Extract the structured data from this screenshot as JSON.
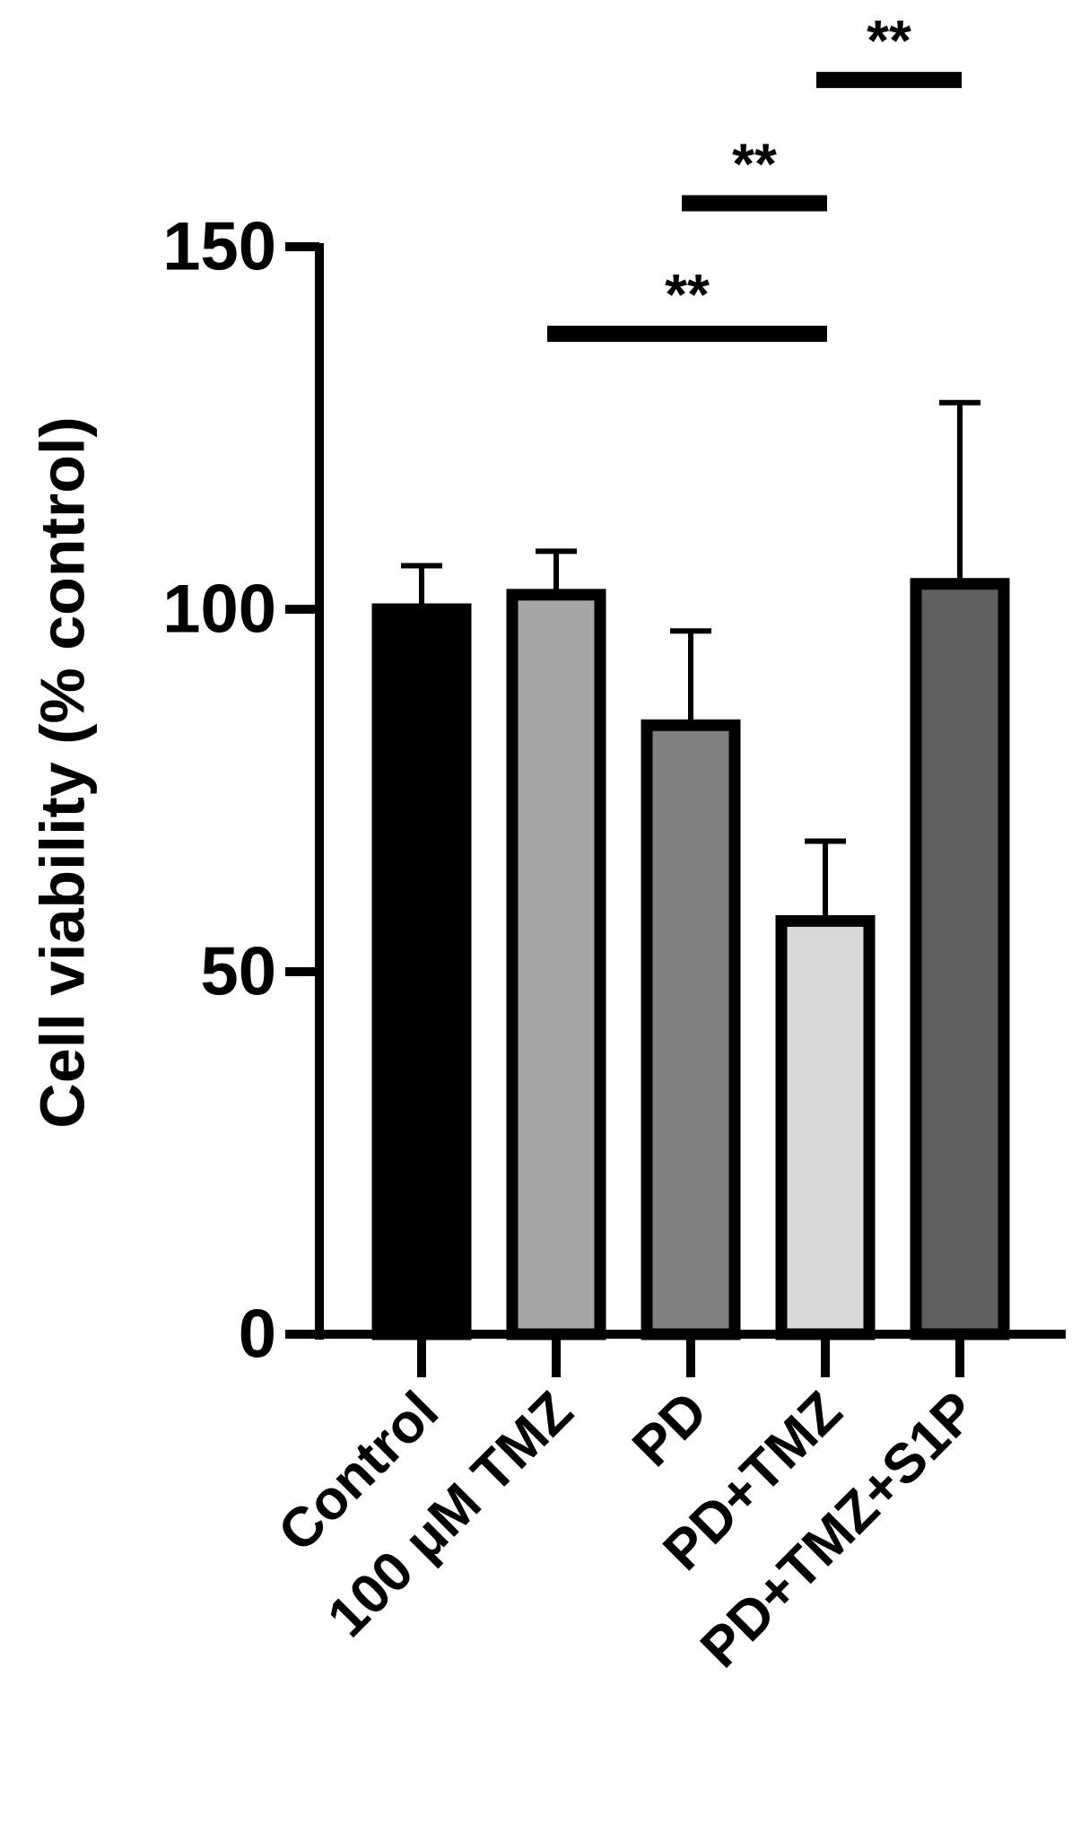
{
  "chart_data": {
    "type": "bar",
    "title": "",
    "xlabel": "",
    "ylabel": "Cell viability (% control)",
    "ylim": [
      0,
      150
    ],
    "yticks": [
      0,
      50,
      100,
      150
    ],
    "ytick_labels": [
      "0",
      "50",
      "100",
      "150"
    ],
    "grid": false,
    "legend": "none",
    "categories": [
      "Control",
      "100 μM TMZ",
      "PD",
      "PD+TMZ",
      "PD+TMZ+S1P"
    ],
    "values": [
      100,
      102,
      84,
      57,
      103.5
    ],
    "errors": [
      6,
      6,
      13,
      11,
      25
    ],
    "colors": [
      "#000000",
      "#a6a6a8",
      "#808080",
      "#d9d9d9",
      "#5f5f5f"
    ],
    "significance": [
      {
        "from": "100 μM TMZ",
        "to": "PD+TMZ",
        "label": "**",
        "y": 138
      },
      {
        "from": "PD",
        "to": "PD+TMZ",
        "label": "**",
        "y": 156
      },
      {
        "from": "PD+TMZ",
        "to": "PD+TMZ+S1P",
        "label": "**",
        "y": 173
      }
    ]
  }
}
